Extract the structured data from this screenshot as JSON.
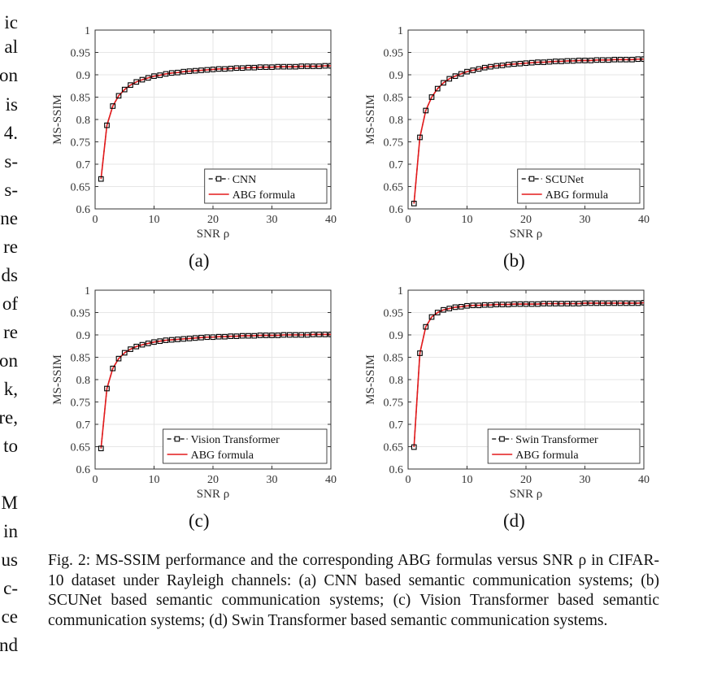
{
  "left_fragments": [
    "ic",
    "al",
    "on",
    "is",
    "4.",
    "s-",
    "s-",
    "ne",
    "re",
    "ds",
    "of",
    "re",
    "on",
    "k,",
    "re,",
    "to",
    "",
    "M",
    "in",
    "us",
    "c-",
    "ce",
    "nd"
  ],
  "chart_data": [
    {
      "type": "line",
      "panel_label": "(a)",
      "xlabel": "SNR ρ",
      "ylabel": "MS-SSIM",
      "xlim": [
        0,
        40
      ],
      "ylim": [
        0.6,
        1
      ],
      "xticks": [
        0,
        10,
        20,
        30,
        40
      ],
      "yticks": [
        0.6,
        0.65,
        0.7,
        0.75,
        0.8,
        0.85,
        0.9,
        0.95,
        1
      ],
      "ytick_labels": [
        "0.6",
        "0.65",
        "0.7",
        "0.75",
        "0.8",
        "0.85",
        "0.9",
        "0.95",
        "1"
      ],
      "grid": true,
      "legend_position": "bottom-right",
      "series": [
        {
          "name": "CNN",
          "style": "dashed-square-markers",
          "color": "#000000",
          "x": [
            1,
            2,
            3,
            4,
            5,
            6,
            7,
            8,
            9,
            10,
            11,
            12,
            13,
            14,
            15,
            16,
            17,
            18,
            19,
            20,
            21,
            22,
            23,
            24,
            25,
            26,
            27,
            28,
            29,
            30,
            31,
            32,
            33,
            34,
            35,
            36,
            37,
            38,
            39,
            40
          ],
          "y": [
            0.667,
            0.787,
            0.83,
            0.853,
            0.867,
            0.877,
            0.884,
            0.889,
            0.893,
            0.897,
            0.899,
            0.902,
            0.904,
            0.905,
            0.907,
            0.908,
            0.909,
            0.91,
            0.911,
            0.912,
            0.913,
            0.913,
            0.914,
            0.915,
            0.915,
            0.916,
            0.916,
            0.917,
            0.917,
            0.917,
            0.918,
            0.918,
            0.918,
            0.918,
            0.919,
            0.919,
            0.919,
            0.919,
            0.92,
            0.92
          ]
        },
        {
          "name": "ABG formula",
          "style": "solid",
          "color": "#e41a1c",
          "x": [
            1,
            2,
            3,
            4,
            5,
            6,
            7,
            8,
            9,
            10,
            11,
            12,
            13,
            14,
            15,
            16,
            17,
            18,
            19,
            20,
            21,
            22,
            23,
            24,
            25,
            26,
            27,
            28,
            29,
            30,
            31,
            32,
            33,
            34,
            35,
            36,
            37,
            38,
            39,
            40
          ],
          "y": [
            0.667,
            0.787,
            0.83,
            0.853,
            0.867,
            0.877,
            0.884,
            0.889,
            0.893,
            0.897,
            0.899,
            0.902,
            0.904,
            0.905,
            0.907,
            0.908,
            0.909,
            0.91,
            0.911,
            0.912,
            0.913,
            0.913,
            0.914,
            0.915,
            0.915,
            0.916,
            0.916,
            0.917,
            0.917,
            0.917,
            0.918,
            0.918,
            0.918,
            0.918,
            0.919,
            0.919,
            0.919,
            0.919,
            0.92,
            0.92
          ]
        }
      ]
    },
    {
      "type": "line",
      "panel_label": "(b)",
      "xlabel": "SNR ρ",
      "ylabel": "MS-SSIM",
      "xlim": [
        0,
        40
      ],
      "ylim": [
        0.6,
        1
      ],
      "xticks": [
        0,
        10,
        20,
        30,
        40
      ],
      "yticks": [
        0.6,
        0.65,
        0.7,
        0.75,
        0.8,
        0.85,
        0.9,
        0.95,
        1
      ],
      "ytick_labels": [
        "0.6",
        "0.65",
        "0.7",
        "0.75",
        "0.8",
        "0.85",
        "0.9",
        "0.95",
        "1"
      ],
      "grid": true,
      "legend_position": "bottom-right",
      "series": [
        {
          "name": "SCUNet",
          "style": "dashed-square-markers",
          "color": "#000000",
          "x": [
            1,
            2,
            3,
            4,
            5,
            6,
            7,
            8,
            9,
            10,
            11,
            12,
            13,
            14,
            15,
            16,
            17,
            18,
            19,
            20,
            21,
            22,
            23,
            24,
            25,
            26,
            27,
            28,
            29,
            30,
            31,
            32,
            33,
            34,
            35,
            36,
            37,
            38,
            39,
            40
          ],
          "y": [
            0.612,
            0.76,
            0.82,
            0.85,
            0.869,
            0.882,
            0.891,
            0.897,
            0.902,
            0.907,
            0.91,
            0.913,
            0.916,
            0.918,
            0.92,
            0.921,
            0.923,
            0.924,
            0.925,
            0.926,
            0.927,
            0.928,
            0.928,
            0.929,
            0.93,
            0.93,
            0.931,
            0.931,
            0.932,
            0.932,
            0.932,
            0.933,
            0.933,
            0.933,
            0.934,
            0.934,
            0.934,
            0.934,
            0.935,
            0.935
          ]
        },
        {
          "name": "ABG formula",
          "style": "solid",
          "color": "#e41a1c",
          "x": [
            1,
            2,
            3,
            4,
            5,
            6,
            7,
            8,
            9,
            10,
            11,
            12,
            13,
            14,
            15,
            16,
            17,
            18,
            19,
            20,
            21,
            22,
            23,
            24,
            25,
            26,
            27,
            28,
            29,
            30,
            31,
            32,
            33,
            34,
            35,
            36,
            37,
            38,
            39,
            40
          ],
          "y": [
            0.612,
            0.76,
            0.82,
            0.85,
            0.869,
            0.882,
            0.891,
            0.897,
            0.902,
            0.907,
            0.91,
            0.913,
            0.916,
            0.918,
            0.92,
            0.921,
            0.923,
            0.924,
            0.925,
            0.926,
            0.927,
            0.928,
            0.928,
            0.929,
            0.93,
            0.93,
            0.931,
            0.931,
            0.932,
            0.932,
            0.932,
            0.933,
            0.933,
            0.933,
            0.934,
            0.934,
            0.934,
            0.934,
            0.935,
            0.935
          ]
        }
      ]
    },
    {
      "type": "line",
      "panel_label": "(c)",
      "xlabel": "SNR ρ",
      "ylabel": "MS-SSIM",
      "xlim": [
        0,
        40
      ],
      "ylim": [
        0.6,
        1
      ],
      "xticks": [
        0,
        10,
        20,
        30,
        40
      ],
      "yticks": [
        0.6,
        0.65,
        0.7,
        0.75,
        0.8,
        0.85,
        0.9,
        0.95,
        1
      ],
      "ytick_labels": [
        "0.6",
        "0.65",
        "0.7",
        "0.75",
        "0.8",
        "0.85",
        "0.9",
        "0.95",
        "1"
      ],
      "grid": true,
      "legend_position": "bottom-right",
      "series": [
        {
          "name": "Vision Transformer",
          "style": "dashed-square-markers",
          "color": "#000000",
          "x": [
            1,
            2,
            3,
            4,
            5,
            6,
            7,
            8,
            9,
            10,
            11,
            12,
            13,
            14,
            15,
            16,
            17,
            18,
            19,
            20,
            21,
            22,
            23,
            24,
            25,
            26,
            27,
            28,
            29,
            30,
            31,
            32,
            33,
            34,
            35,
            36,
            37,
            38,
            39,
            40
          ],
          "y": [
            0.646,
            0.78,
            0.825,
            0.847,
            0.86,
            0.868,
            0.874,
            0.878,
            0.881,
            0.884,
            0.886,
            0.888,
            0.889,
            0.89,
            0.891,
            0.892,
            0.893,
            0.894,
            0.895,
            0.895,
            0.896,
            0.896,
            0.897,
            0.897,
            0.898,
            0.898,
            0.898,
            0.899,
            0.899,
            0.899,
            0.899,
            0.9,
            0.9,
            0.9,
            0.9,
            0.9,
            0.901,
            0.901,
            0.901,
            0.901
          ]
        },
        {
          "name": "ABG formula",
          "style": "solid",
          "color": "#e41a1c",
          "x": [
            1,
            2,
            3,
            4,
            5,
            6,
            7,
            8,
            9,
            10,
            11,
            12,
            13,
            14,
            15,
            16,
            17,
            18,
            19,
            20,
            21,
            22,
            23,
            24,
            25,
            26,
            27,
            28,
            29,
            30,
            31,
            32,
            33,
            34,
            35,
            36,
            37,
            38,
            39,
            40
          ],
          "y": [
            0.646,
            0.78,
            0.825,
            0.847,
            0.86,
            0.868,
            0.874,
            0.878,
            0.881,
            0.884,
            0.886,
            0.888,
            0.889,
            0.89,
            0.891,
            0.892,
            0.893,
            0.894,
            0.895,
            0.895,
            0.896,
            0.896,
            0.897,
            0.897,
            0.898,
            0.898,
            0.898,
            0.899,
            0.899,
            0.899,
            0.899,
            0.9,
            0.9,
            0.9,
            0.9,
            0.9,
            0.901,
            0.901,
            0.901,
            0.901
          ]
        }
      ]
    },
    {
      "type": "line",
      "panel_label": "(d)",
      "xlabel": "SNR ρ",
      "ylabel": "MS-SSIM",
      "xlim": [
        0,
        40
      ],
      "ylim": [
        0.6,
        1
      ],
      "xticks": [
        0,
        10,
        20,
        30,
        40
      ],
      "yticks": [
        0.6,
        0.65,
        0.7,
        0.75,
        0.8,
        0.85,
        0.9,
        0.95,
        1
      ],
      "ytick_labels": [
        "0.6",
        "0.65",
        "0.7",
        "0.75",
        "0.8",
        "0.85",
        "0.9",
        "0.95",
        "1"
      ],
      "grid": true,
      "legend_position": "bottom-right",
      "series": [
        {
          "name": "Swin Transformer",
          "style": "dashed-square-markers",
          "color": "#000000",
          "x": [
            1,
            2,
            3,
            4,
            5,
            6,
            7,
            8,
            9,
            10,
            11,
            12,
            13,
            14,
            15,
            16,
            17,
            18,
            19,
            20,
            21,
            22,
            23,
            24,
            25,
            26,
            27,
            28,
            29,
            30,
            31,
            32,
            33,
            34,
            35,
            36,
            37,
            38,
            39,
            40
          ],
          "y": [
            0.649,
            0.859,
            0.918,
            0.94,
            0.95,
            0.956,
            0.959,
            0.962,
            0.963,
            0.965,
            0.966,
            0.966,
            0.967,
            0.967,
            0.968,
            0.968,
            0.968,
            0.969,
            0.969,
            0.969,
            0.969,
            0.969,
            0.97,
            0.97,
            0.97,
            0.97,
            0.97,
            0.97,
            0.97,
            0.971,
            0.971,
            0.971,
            0.971,
            0.971,
            0.971,
            0.971,
            0.971,
            0.971,
            0.971,
            0.972
          ]
        },
        {
          "name": "ABG formula",
          "style": "solid",
          "color": "#e41a1c",
          "x": [
            1,
            2,
            3,
            4,
            5,
            6,
            7,
            8,
            9,
            10,
            11,
            12,
            13,
            14,
            15,
            16,
            17,
            18,
            19,
            20,
            21,
            22,
            23,
            24,
            25,
            26,
            27,
            28,
            29,
            30,
            31,
            32,
            33,
            34,
            35,
            36,
            37,
            38,
            39,
            40
          ],
          "y": [
            0.649,
            0.859,
            0.918,
            0.94,
            0.95,
            0.956,
            0.959,
            0.962,
            0.963,
            0.965,
            0.966,
            0.966,
            0.967,
            0.967,
            0.968,
            0.968,
            0.968,
            0.969,
            0.969,
            0.969,
            0.969,
            0.969,
            0.97,
            0.97,
            0.97,
            0.97,
            0.97,
            0.97,
            0.97,
            0.971,
            0.971,
            0.971,
            0.971,
            0.971,
            0.971,
            0.971,
            0.971,
            0.971,
            0.971,
            0.972
          ]
        }
      ]
    }
  ],
  "caption": "Fig. 2: MS-SSIM performance and the corresponding ABG formulas versus SNR ρ in CIFAR-10 dataset under Rayleigh channels: (a) CNN based semantic communication systems; (b) SCUNet based semantic communication systems; (c) Vision Transformer based semantic communication systems; (d) Swin Transformer based semantic communication systems."
}
